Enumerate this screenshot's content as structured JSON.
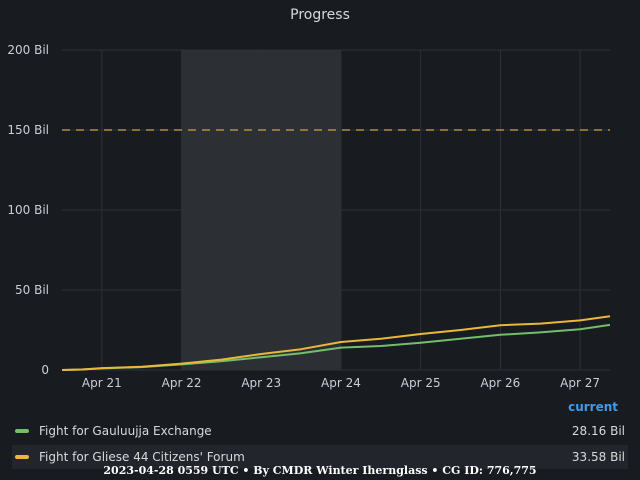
{
  "panel": {
    "title": "Progress"
  },
  "chart_data": {
    "type": "line",
    "title": "Progress",
    "xlabel": "",
    "ylabel": "",
    "y_tick_labels": [
      "0",
      "50 Bil",
      "100 Bil",
      "150 Bil",
      "200 Bil"
    ],
    "y_tick_values": [
      0,
      50,
      100,
      150,
      200
    ],
    "ylim": [
      0,
      200
    ],
    "x_tick_labels": [
      "Apr 21",
      "Apr 22",
      "Apr 23",
      "Apr 24",
      "Apr 25",
      "Apr 26",
      "Apr 27"
    ],
    "xlim": [
      "2023-04-20T12:00",
      "2023-04-27T09:00"
    ],
    "grid": true,
    "highlight_region": [
      "2023-04-22T00:00",
      "2023-04-24T00:00"
    ],
    "threshold": {
      "value": 150,
      "color": "#c9a23a",
      "style": "dashed"
    },
    "series": [
      {
        "name": "Fight for Gauluujja Exchange",
        "color": "#73bf69",
        "x": [
          "2023-04-20T12:00",
          "2023-04-20T18:00",
          "2023-04-21T00:00",
          "2023-04-21T12:00",
          "2023-04-22T00:00",
          "2023-04-22T12:00",
          "2023-04-23T00:00",
          "2023-04-23T12:00",
          "2023-04-24T00:00",
          "2023-04-24T12:00",
          "2023-04-25T00:00",
          "2023-04-25T12:00",
          "2023-04-26T00:00",
          "2023-04-26T12:00",
          "2023-04-27T00:00",
          "2023-04-27T09:00"
        ],
        "values": [
          0,
          0.3,
          1.0,
          1.8,
          3.5,
          5.5,
          8.0,
          10.5,
          14.0,
          15.0,
          17.0,
          19.5,
          22.0,
          23.5,
          25.5,
          28.16
        ]
      },
      {
        "name": "Fight for Gliese 44 Citizens' Forum",
        "color": "#eab839",
        "x": [
          "2023-04-20T12:00",
          "2023-04-20T18:00",
          "2023-04-21T00:00",
          "2023-04-21T12:00",
          "2023-04-22T00:00",
          "2023-04-22T12:00",
          "2023-04-23T00:00",
          "2023-04-23T12:00",
          "2023-04-24T00:00",
          "2023-04-24T12:00",
          "2023-04-25T00:00",
          "2023-04-25T12:00",
          "2023-04-26T00:00",
          "2023-04-26T12:00",
          "2023-04-27T00:00",
          "2023-04-27T09:00"
        ],
        "values": [
          0,
          0.3,
          1.2,
          2.0,
          4.0,
          6.5,
          10.0,
          13.0,
          17.5,
          19.5,
          22.5,
          25.0,
          28.0,
          29.0,
          31.0,
          33.58
        ]
      }
    ]
  },
  "legend": {
    "header": "current",
    "items": [
      {
        "label": "Fight for Gauluujja Exchange",
        "value": "28.16 Bil",
        "color": "#73bf69"
      },
      {
        "label": "Fight for Gliese 44 Citizens' Forum",
        "value": "33.58 Bil",
        "color": "#eab839"
      }
    ]
  },
  "footer": {
    "text": "2023-04-28 0559 UTC • By CMDR Winter Ihernglass • CG ID: 776,775"
  }
}
